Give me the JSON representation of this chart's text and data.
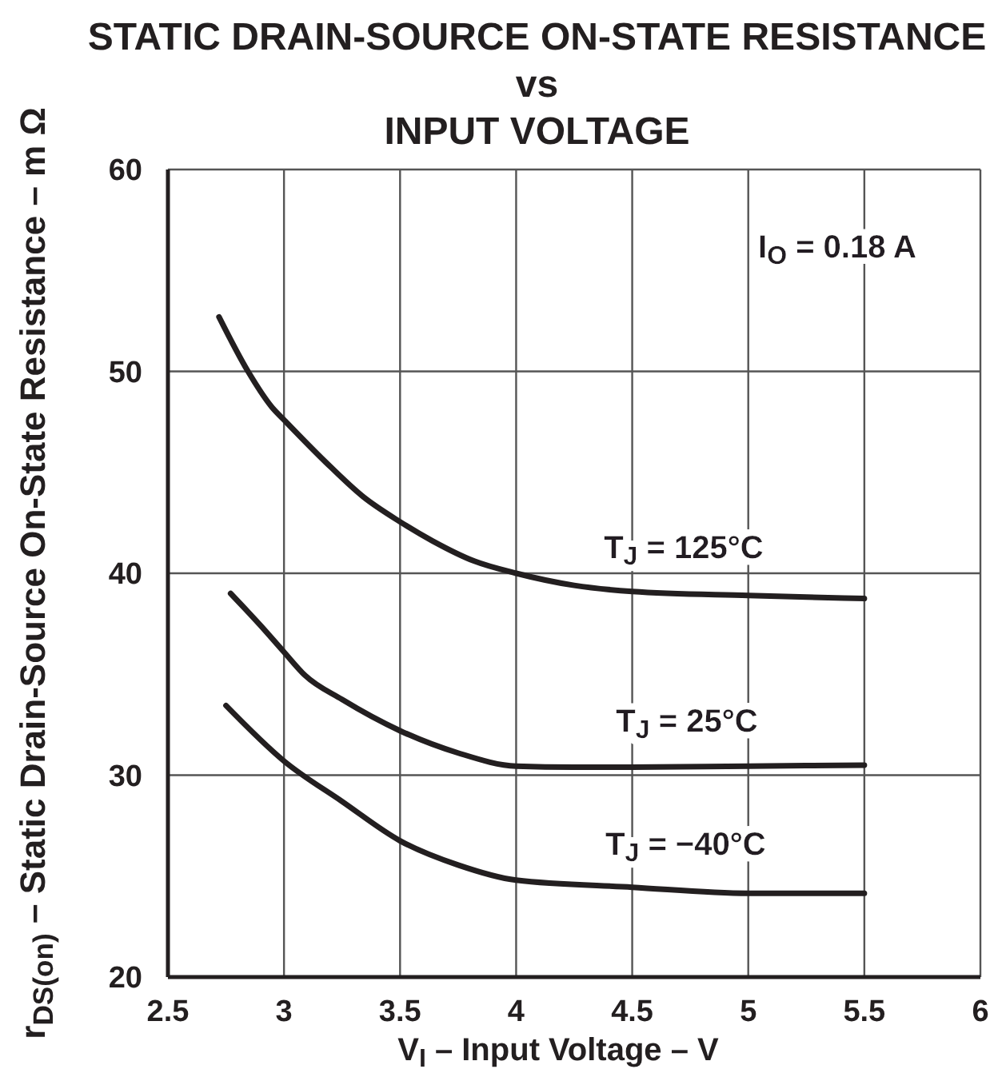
{
  "chart_data": {
    "type": "line",
    "title": "STATIC DRAIN-SOURCE ON-STATE RESISTANCE\nvs\nINPUT VOLTAGE",
    "xlabel": "V$_{I}$ – Input Voltage – V",
    "ylabel": "r$_{DS(on)}$ – Static Drain-Source On-State Resistance – m Ω",
    "annotations": [
      "I$_{O}$ = 0.18 A"
    ],
    "xlim": [
      2.5,
      6
    ],
    "xticks": [
      2.5,
      3,
      3.5,
      4,
      4.5,
      5,
      5.5,
      6
    ],
    "ylim": [
      20,
      60
    ],
    "yticks": [
      20,
      30,
      40,
      50,
      60
    ],
    "grid": true,
    "legend": false,
    "marker": "none",
    "line_style": "solid",
    "series": [
      {
        "name": "T$_{J}$ = 125°C",
        "color": "#231f20",
        "x": [
          2.72,
          2.845,
          2.95,
          3,
          3.18,
          3.34,
          3.5,
          3.64,
          3.82,
          4,
          4.25,
          4.5,
          5,
          5.5
        ],
        "values": [
          52.7,
          50,
          48.2,
          47.6,
          45.5,
          43.8,
          42.55,
          41.6,
          40.6,
          40,
          39.4,
          39.1,
          38.9,
          38.75
        ]
      },
      {
        "name": "T$_{J}$ = 25°C",
        "color": "#231f20",
        "x": [
          2.77,
          2.9,
          3,
          3.09,
          3.25,
          3.5,
          3.75,
          4,
          4.25,
          4.5,
          5,
          5.5
        ],
        "values": [
          39,
          37.4,
          36.1,
          34.95,
          33.75,
          32.2,
          31.1,
          30.45,
          30.4,
          30.4,
          30.45,
          30.5
        ]
      },
      {
        "name": "T$_{J}$ = −40°C",
        "color": "#231f20",
        "x": [
          2.75,
          3,
          3.25,
          3.5,
          3.75,
          4,
          4.5,
          5,
          5.5
        ],
        "values": [
          33.45,
          30.7,
          28.7,
          26.75,
          25.55,
          24.8,
          24.45,
          24.15,
          24.15
        ]
      }
    ]
  }
}
